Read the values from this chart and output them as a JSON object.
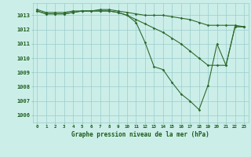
{
  "x": [
    0,
    1,
    2,
    3,
    4,
    5,
    6,
    7,
    8,
    9,
    10,
    11,
    12,
    13,
    14,
    15,
    16,
    17,
    18,
    19,
    20,
    21,
    22,
    23
  ],
  "line_steep": [
    1013.3,
    1013.1,
    1013.1,
    1013.1,
    1013.2,
    1013.3,
    1013.3,
    1013.3,
    1013.3,
    1013.2,
    1013.0,
    1012.5,
    1011.1,
    1009.4,
    1009.2,
    1008.3,
    1007.5,
    1007.0,
    1006.4,
    1008.1,
    1011.0,
    1009.5,
    1012.2,
    1012.2
  ],
  "line_mid": [
    1013.3,
    1013.1,
    1013.1,
    1013.1,
    1013.2,
    1013.3,
    1013.3,
    1013.3,
    1013.3,
    1013.2,
    1013.0,
    1012.7,
    1012.4,
    1012.1,
    1011.8,
    1011.4,
    1011.0,
    1010.5,
    1010.0,
    1009.5,
    1009.5,
    1009.5,
    1012.2,
    1012.2
  ],
  "line_flat": [
    1013.4,
    1013.2,
    1013.2,
    1013.2,
    1013.3,
    1013.3,
    1013.3,
    1013.4,
    1013.4,
    1013.3,
    1013.2,
    1013.1,
    1013.0,
    1013.0,
    1013.0,
    1012.9,
    1012.8,
    1012.7,
    1012.5,
    1012.3,
    1012.3,
    1012.3,
    1012.3,
    1012.2
  ],
  "line_color": "#2d6a2d",
  "bg_color": "#cceee8",
  "grid_color": "#99cccc",
  "text_color": "#1a5c1a",
  "xlabel": "Graphe pression niveau de la mer (hPa)",
  "ylim": [
    1005.5,
    1013.85
  ],
  "yticks": [
    1006,
    1007,
    1008,
    1009,
    1010,
    1011,
    1012,
    1013
  ],
  "xticks": [
    0,
    1,
    2,
    3,
    4,
    5,
    6,
    7,
    8,
    9,
    10,
    11,
    12,
    13,
    14,
    15,
    16,
    17,
    18,
    19,
    20,
    21,
    22,
    23
  ]
}
